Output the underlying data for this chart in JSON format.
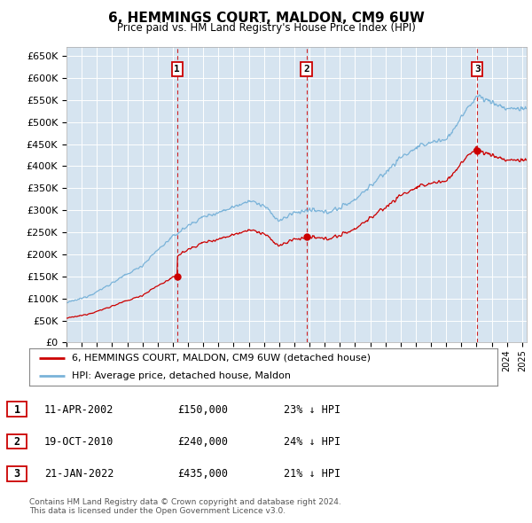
{
  "title": "6, HEMMINGS COURT, MALDON, CM9 6UW",
  "subtitle": "Price paid vs. HM Land Registry's House Price Index (HPI)",
  "ylim": [
    0,
    670000
  ],
  "yticks": [
    0,
    50000,
    100000,
    150000,
    200000,
    250000,
    300000,
    350000,
    400000,
    450000,
    500000,
    550000,
    600000,
    650000
  ],
  "xlim_start": 1995.0,
  "xlim_end": 2025.3,
  "background_color": "#d6e4f0",
  "grid_color": "#ffffff",
  "hpi_color": "#7ab3d9",
  "price_color": "#cc0000",
  "vline_color": "#cc0000",
  "purchases": [
    {
      "date_num": 2002.28,
      "price": 150000,
      "label": "1",
      "date_str": "11-APR-2002",
      "pct": "23% ↓ HPI"
    },
    {
      "date_num": 2010.8,
      "price": 240000,
      "label": "2",
      "date_str": "19-OCT-2010",
      "pct": "24% ↓ HPI"
    },
    {
      "date_num": 2022.05,
      "price": 435000,
      "label": "3",
      "date_str": "21-JAN-2022",
      "pct": "21% ↓ HPI"
    }
  ],
  "legend_property_label": "6, HEMMINGS COURT, MALDON, CM9 6UW (detached house)",
  "legend_hpi_label": "HPI: Average price, detached house, Maldon",
  "footer": "Contains HM Land Registry data © Crown copyright and database right 2024.\nThis data is licensed under the Open Government Licence v3.0.",
  "hpi_anchors_x": [
    1995,
    1996,
    1997,
    1998,
    1999,
    2000,
    2001,
    2002,
    2003,
    2004,
    2005,
    2006,
    2007,
    2008,
    2009,
    2010,
    2011,
    2012,
    2013,
    2014,
    2015,
    2016,
    2017,
    2018,
    2019,
    2020,
    2021,
    2022,
    2023,
    2024,
    2025
  ],
  "hpi_anchors_y": [
    90000,
    100000,
    115000,
    135000,
    155000,
    175000,
    210000,
    240000,
    265000,
    285000,
    295000,
    308000,
    322000,
    310000,
    275000,
    295000,
    300000,
    295000,
    305000,
    325000,
    355000,
    385000,
    420000,
    440000,
    455000,
    460000,
    510000,
    560000,
    545000,
    530000,
    530000
  ],
  "price_scale_pre": 0.78,
  "price_scale_1_2": 0.79,
  "price_scale_2_3": 0.79,
  "price_scale_post": 0.79
}
